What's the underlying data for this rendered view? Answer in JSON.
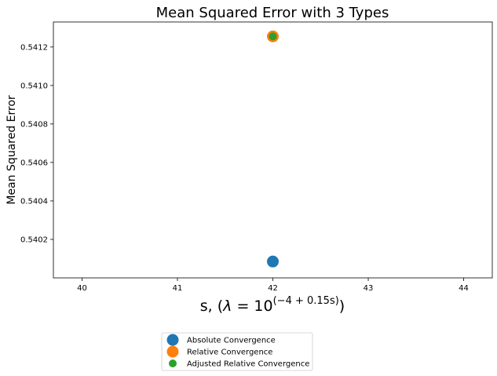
{
  "chart_data": {
    "type": "scatter",
    "title": "Mean Squared Error with 3 Types",
    "xlabel": {
      "prefix": "s, (",
      "lambda": "λ",
      "eq": " = 10",
      "exponent": "(−4 + 0.15s)",
      "suffix": ")"
    },
    "ylabel": "Mean Squared Error",
    "xlim": [
      39.7,
      44.3
    ],
    "ylim": [
      0.54,
      0.54133
    ],
    "xticks": [
      40,
      41,
      42,
      43,
      44
    ],
    "yticks": [
      0.5402,
      0.5404,
      0.5406,
      0.5408,
      0.541,
      0.5412
    ],
    "ytick_labels": [
      "0.5402",
      "0.5404",
      "0.5406",
      "0.5408",
      "0.5410",
      "0.5412"
    ],
    "grid": false,
    "legend_position": "below plot",
    "series": [
      {
        "name": "Absolute Convergence",
        "color": "#1f77b4",
        "marker": "large",
        "points": [
          [
            42,
            0.540085
          ]
        ]
      },
      {
        "name": "Relative Convergence",
        "color": "#ff7f0e",
        "marker": "large",
        "points": [
          [
            42,
            0.541255
          ]
        ]
      },
      {
        "name": "Adjusted Relative Convergence",
        "color": "#2ca02c",
        "marker": "small",
        "points": [
          [
            42,
            0.541255
          ]
        ]
      }
    ]
  }
}
